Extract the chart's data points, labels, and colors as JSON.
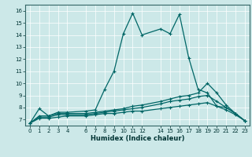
{
  "title": "",
  "xlabel": "Humidex (Indice chaleur)",
  "bg_color": "#cce8e8",
  "grid_color": "#aacccc",
  "line_color": "#006666",
  "xlim": [
    -0.5,
    23.5
  ],
  "ylim": [
    6.5,
    16.5
  ],
  "xticks": [
    0,
    1,
    2,
    3,
    4,
    6,
    7,
    8,
    9,
    10,
    11,
    12,
    14,
    15,
    16,
    17,
    18,
    19,
    20,
    21,
    22,
    23
  ],
  "yticks": [
    7,
    8,
    9,
    10,
    11,
    12,
    13,
    14,
    15,
    16
  ],
  "line1_x": [
    0,
    1,
    2,
    3,
    4,
    6,
    7,
    8,
    9,
    10,
    11,
    12,
    14,
    15,
    16,
    17,
    18,
    19,
    20,
    21,
    22,
    23
  ],
  "line1_y": [
    6.7,
    7.9,
    7.3,
    7.6,
    7.6,
    7.7,
    7.8,
    9.5,
    11.0,
    14.1,
    15.8,
    14.0,
    14.5,
    14.1,
    15.7,
    12.1,
    9.5,
    9.2,
    8.1,
    8.0,
    7.5,
    6.9
  ],
  "line2_x": [
    0,
    1,
    2,
    3,
    4,
    6,
    7,
    8,
    9,
    10,
    11,
    12,
    14,
    15,
    16,
    17,
    18,
    19,
    20,
    21,
    22,
    23
  ],
  "line2_y": [
    6.7,
    7.3,
    7.3,
    7.5,
    7.5,
    7.5,
    7.6,
    7.7,
    7.8,
    7.9,
    8.1,
    8.2,
    8.5,
    8.7,
    8.9,
    9.0,
    9.2,
    10.0,
    9.2,
    8.2,
    7.5,
    6.9
  ],
  "line3_x": [
    0,
    1,
    2,
    3,
    4,
    6,
    7,
    8,
    9,
    10,
    11,
    12,
    14,
    15,
    16,
    17,
    18,
    19,
    20,
    21,
    22,
    23
  ],
  "line3_y": [
    6.7,
    7.2,
    7.2,
    7.4,
    7.4,
    7.4,
    7.5,
    7.6,
    7.7,
    7.8,
    7.9,
    8.0,
    8.3,
    8.5,
    8.6,
    8.7,
    8.9,
    9.0,
    8.5,
    8.0,
    7.5,
    6.9
  ],
  "line4_x": [
    0,
    1,
    2,
    3,
    4,
    6,
    7,
    8,
    9,
    10,
    11,
    12,
    14,
    15,
    16,
    17,
    18,
    19,
    20,
    21,
    22,
    23
  ],
  "line4_y": [
    6.7,
    7.1,
    7.1,
    7.2,
    7.3,
    7.3,
    7.4,
    7.5,
    7.5,
    7.6,
    7.7,
    7.7,
    7.9,
    8.0,
    8.1,
    8.2,
    8.3,
    8.4,
    8.1,
    7.8,
    7.4,
    6.9
  ],
  "xlabel_fontsize": 6,
  "tick_fontsize": 5,
  "linewidth": 0.9,
  "markersize": 3.5
}
